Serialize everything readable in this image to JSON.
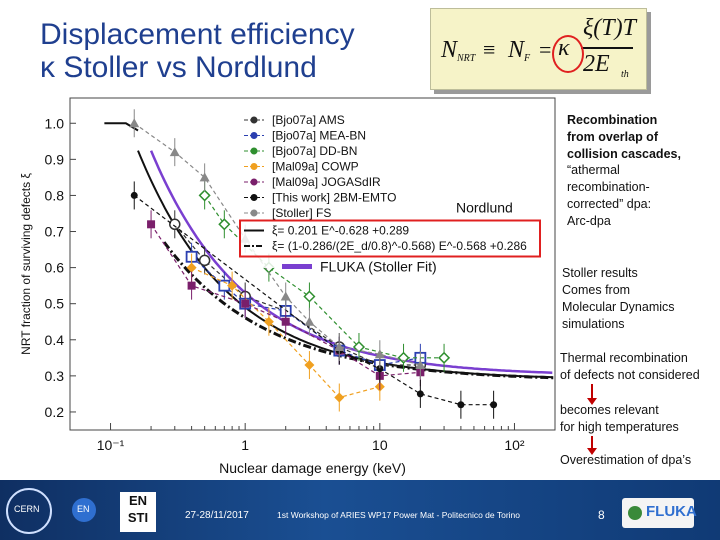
{
  "title": {
    "line1": "Displacement efficiency",
    "line2": "κ Stoller vs Nordlund"
  },
  "formula": {
    "lhs": "N",
    "lhs_sub": "NRT",
    "equiv": "≡",
    "nf": "N",
    "nf_sub": "F",
    "eq": "=",
    "kappa": "κ",
    "num": "ξ(T)T",
    "den": "2E",
    "den_sub": "th"
  },
  "annotations": {
    "nordlund": "Nordlund",
    "fluka_fit": "FLUKA (Stoller Fit)",
    "recomb_title": [
      "Recombination",
      "from overlap of",
      "collision cascades,"
    ],
    "recomb_body": [
      "“athermal",
      "recombination-",
      "corrected” dpa:",
      "Arc-dpa"
    ],
    "stoller": [
      "Stoller results",
      "Comes from",
      "Molecular Dynamics",
      "simulations"
    ],
    "thermal": [
      "Thermal recombination",
      "of defects not considered"
    ],
    "relevant": [
      "becomes relevant",
      "for high temperatures"
    ],
    "overestimation": "Overestimation of dpa’s"
  },
  "footer": {
    "date": "27-28/11/2017",
    "workshop": "1st Workshop of ARIES WP17 Power Mat - Politecnico de Torino",
    "page": "8",
    "en": "EN",
    "en_sti_top": "EN",
    "en_sti_bottom": "STI",
    "fluka": "FLUKA",
    "cern": "CERN"
  },
  "chart_data": {
    "type": "scatter",
    "xlabel": "Nuclear damage energy (keV)",
    "ylabel": "NRT fraction of surviving defects ξ",
    "xscale": "log",
    "xlim": [
      0.05,
      200
    ],
    "ylim": [
      0.15,
      1.07
    ],
    "xtick_labels": [
      "10⁻¹",
      "1",
      "10",
      "10²"
    ],
    "xticks": [
      0.1,
      1,
      10,
      100
    ],
    "yticks": [
      0.2,
      0.3,
      0.4,
      0.5,
      0.6,
      0.7,
      0.8,
      0.9,
      1.0
    ],
    "ytick_labels": [
      "0.2",
      "0.3",
      "0.4",
      "0.5",
      "0.6",
      "0.7",
      "0.8",
      "0.9",
      "1.0"
    ],
    "legend_placement": "top-right",
    "series": [
      {
        "name": "[Bjo07a] AMS",
        "color": "#333333",
        "marker": "circle-open",
        "x": [
          0.3,
          0.5,
          1,
          2,
          5,
          10,
          20
        ],
        "y": [
          0.72,
          0.62,
          0.52,
          0.48,
          0.38,
          0.33,
          0.33
        ]
      },
      {
        "name": "[Bjo07a] MEA-BN",
        "color": "#2b3fb0",
        "marker": "square-open",
        "x": [
          0.4,
          0.7,
          1,
          2,
          5,
          10,
          20
        ],
        "y": [
          0.63,
          0.55,
          0.5,
          0.48,
          0.37,
          0.33,
          0.35
        ]
      },
      {
        "name": "[Bjo07a] DD-BN",
        "color": "#2f8f2f",
        "marker": "diamond-open",
        "x": [
          0.5,
          0.7,
          1.5,
          3,
          7,
          15,
          30
        ],
        "y": [
          0.8,
          0.72,
          0.6,
          0.52,
          0.38,
          0.35,
          0.35
        ]
      },
      {
        "name": "[Mal09a] COWP",
        "color": "#f0a020",
        "marker": "diamond",
        "x": [
          0.4,
          0.8,
          1.5,
          3,
          5,
          10
        ],
        "y": [
          0.6,
          0.55,
          0.45,
          0.33,
          0.24,
          0.27
        ]
      },
      {
        "name": "[Mal09a] JOGASdIR",
        "color": "#7a1f6b",
        "marker": "square",
        "x": [
          0.2,
          0.4,
          1,
          2,
          5,
          10,
          20
        ],
        "y": [
          0.72,
          0.55,
          0.5,
          0.45,
          0.37,
          0.3,
          0.31
        ]
      },
      {
        "name": "[This work] 2BM-EMTO",
        "color": "#111111",
        "marker": "dot",
        "x": [
          0.15,
          5,
          10,
          20,
          40,
          70
        ],
        "y": [
          0.8,
          0.37,
          0.32,
          0.25,
          0.22,
          0.22
        ]
      },
      {
        "name": "[Stoller] FS",
        "color": "#888888",
        "marker": "triangle",
        "x": [
          0.15,
          0.3,
          0.5,
          1,
          2,
          3,
          5,
          10,
          20
        ],
        "y": [
          1.0,
          0.92,
          0.85,
          0.68,
          0.52,
          0.45,
          0.38,
          0.36,
          0.33
        ]
      }
    ],
    "fits": [
      {
        "name": "ξ= 0.201 E^-0.628 +0.289",
        "color": "#111111",
        "style": "solid"
      },
      {
        "name": "ξ= (1-0.286/(2E_d/0.8)^-0.568) E^-0.568 +0.286",
        "color": "#111111",
        "style": "dash-dot"
      },
      {
        "name": "FLUKA (Stoller Fit)",
        "color": "#7a3fd0",
        "style": "solid"
      }
    ],
    "highlight": {
      "label": "Nordlund",
      "color": "#e02020"
    }
  }
}
